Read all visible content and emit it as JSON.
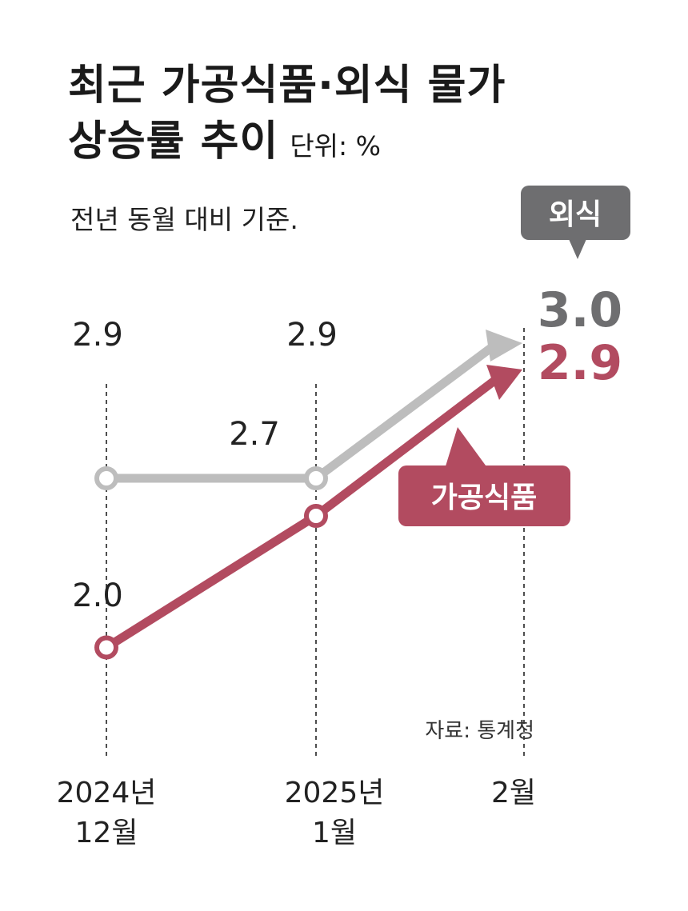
{
  "title": {
    "line1": "최근 가공식품·외식 물가",
    "line2": "상승률 추이",
    "unit": "단위: %"
  },
  "subtitle": "전년 동월 대비 기준.",
  "source": "자료: 통계청",
  "colors": {
    "dining_out": "#bdbdbd",
    "dining_out_label": "#6e6e70",
    "processed_food": "#b24b60",
    "background": "#ffffff"
  },
  "chart_data": {
    "type": "line",
    "x": [
      {
        "line1": "2024년",
        "line2": "12월"
      },
      {
        "line1": "2025년",
        "line2": "1월"
      },
      {
        "line1": "2월",
        "line2": ""
      }
    ],
    "series": [
      {
        "name": "외식",
        "values": [
          2.9,
          2.9,
          3.0
        ],
        "labels": [
          "2.9",
          "2.9",
          "3.0"
        ]
      },
      {
        "name": "가공식품",
        "values": [
          2.0,
          2.7,
          2.9
        ],
        "labels": [
          "2.0",
          "2.7",
          "2.9"
        ]
      }
    ],
    "grid": false,
    "legend": "inline callouts"
  }
}
